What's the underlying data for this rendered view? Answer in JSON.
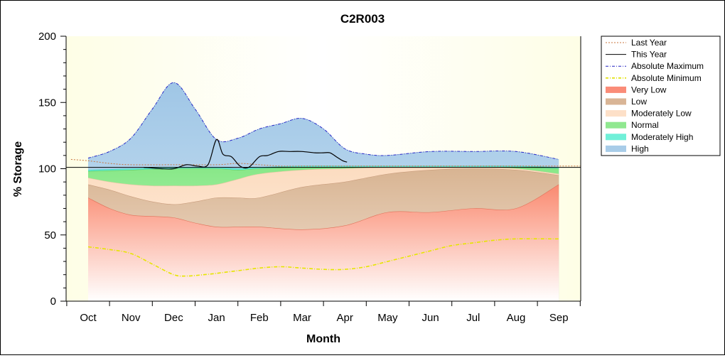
{
  "chart_data": {
    "type": "area",
    "title": "C2R003",
    "xlabel": "Month",
    "ylabel": "% Storage",
    "ylim": [
      0,
      200
    ],
    "yticks": [
      0,
      50,
      100,
      150,
      200
    ],
    "categories": [
      "Oct",
      "Nov",
      "Dec",
      "Jan",
      "Feb",
      "Mar",
      "Apr",
      "May",
      "Jun",
      "Jul",
      "Aug",
      "Sep"
    ],
    "grid": false,
    "legend_position": "right",
    "reference_line": 101,
    "legend": [
      {
        "name": "Last Year",
        "style": "line",
        "color": "#c8743c",
        "dash": "2,2"
      },
      {
        "name": "This Year",
        "style": "line",
        "color": "#000000",
        "dash": ""
      },
      {
        "name": "Absolute Maximum",
        "style": "line",
        "color": "#2020c0",
        "dash": "4,2,1,2"
      },
      {
        "name": "Absolute Minimum",
        "style": "line",
        "color": "#e0e000",
        "dash": "4,2,1,2"
      },
      {
        "name": "Very Low",
        "style": "area",
        "color": "#fa8c78"
      },
      {
        "name": "Low",
        "style": "area",
        "color": "#d9b596"
      },
      {
        "name": "Moderately Low",
        "style": "area",
        "color": "#fde0c8"
      },
      {
        "name": "Normal",
        "style": "area",
        "color": "#90e890"
      },
      {
        "name": "Moderately High",
        "style": "area",
        "color": "#70f0d8"
      },
      {
        "name": "High",
        "style": "area",
        "color": "#a8cce8"
      }
    ],
    "series": [
      {
        "name": "Absolute Maximum",
        "x": [
          0,
          0.5,
          1,
          1.5,
          2,
          2.5,
          3,
          3.5,
          4,
          4.5,
          5,
          5.5,
          6,
          6.5,
          7,
          8,
          9,
          10,
          11
        ],
        "values": [
          108,
          113,
          123,
          145,
          165,
          145,
          122,
          123,
          130,
          134,
          138,
          130,
          115,
          111,
          110,
          113,
          113,
          113,
          107
        ]
      },
      {
        "name": "Moderately High",
        "x": [
          0,
          1,
          2,
          3,
          3.5,
          4,
          5,
          6,
          7,
          8,
          9,
          10,
          11
        ],
        "values": [
          99,
          100,
          101,
          101,
          100,
          101,
          102,
          102,
          102,
          102,
          102,
          102,
          101
        ]
      },
      {
        "name": "Normal",
        "x": [
          0,
          1,
          2,
          3,
          3.5,
          4,
          5,
          6,
          7,
          8,
          9,
          10,
          11
        ],
        "values": [
          98,
          99,
          100,
          100,
          99,
          100,
          101,
          101,
          101,
          101,
          101,
          101,
          100
        ]
      },
      {
        "name": "Moderately Low",
        "x": [
          0,
          0.5,
          1,
          1.5,
          2,
          2.5,
          3,
          3.5,
          4,
          5,
          6,
          7,
          8,
          9,
          10,
          11
        ],
        "values": [
          93,
          90,
          88,
          87,
          87,
          87,
          88,
          92,
          96,
          99,
          100,
          101,
          101,
          101,
          100,
          96
        ]
      },
      {
        "name": "Low",
        "x": [
          0,
          0.5,
          1,
          1.5,
          2,
          2.5,
          3,
          3.5,
          4,
          5,
          6,
          7,
          8,
          9,
          10,
          11
        ],
        "values": [
          88,
          84,
          79,
          75,
          73,
          75,
          78,
          78,
          78,
          86,
          90,
          96,
          99,
          100,
          99,
          95
        ]
      },
      {
        "name": "Very Low",
        "x": [
          0,
          0.5,
          1,
          1.5,
          2,
          2.5,
          3,
          3.5,
          4,
          5,
          6,
          7,
          8,
          9,
          10,
          11
        ],
        "values": [
          78,
          70,
          65,
          64,
          63,
          59,
          56,
          56,
          56,
          54,
          57,
          67,
          67,
          70,
          70,
          88
        ]
      },
      {
        "name": "Absolute Minimum",
        "x": [
          0,
          0.5,
          1,
          1.5,
          2,
          2.3,
          2.7,
          3,
          3.5,
          4,
          4.5,
          5,
          5.5,
          6,
          6.5,
          7,
          7.5,
          8,
          8.5,
          9,
          9.5,
          10,
          11
        ],
        "values": [
          41,
          39,
          36,
          28,
          20,
          19,
          20,
          21,
          23,
          25,
          26,
          25,
          24,
          24,
          26,
          30,
          34,
          38,
          42,
          44,
          46,
          47,
          47
        ]
      },
      {
        "name": "Last Year",
        "x": [
          -0.4,
          0,
          0.5,
          1,
          2,
          3,
          3.5,
          4,
          4.5,
          5,
          6,
          7,
          8,
          9,
          10,
          11,
          11.5
        ],
        "values": [
          107,
          106,
          104,
          103,
          103,
          103,
          104,
          103,
          102,
          102,
          102,
          102,
          102,
          102,
          102,
          102,
          102
        ]
      },
      {
        "name": "This Year",
        "x": [
          1.3,
          1.7,
          2,
          2.3,
          2.55,
          2.8,
          3,
          3.15,
          3.35,
          3.55,
          3.75,
          4,
          4.2,
          4.45,
          4.7,
          5,
          5.3,
          5.5,
          5.65,
          5.8,
          5.95,
          6.05
        ],
        "values": [
          101,
          100,
          100,
          103,
          102,
          103,
          122,
          111,
          109,
          102,
          101,
          109,
          110,
          113,
          113,
          113,
          112,
          112,
          112,
          109,
          106,
          105
        ]
      }
    ]
  }
}
